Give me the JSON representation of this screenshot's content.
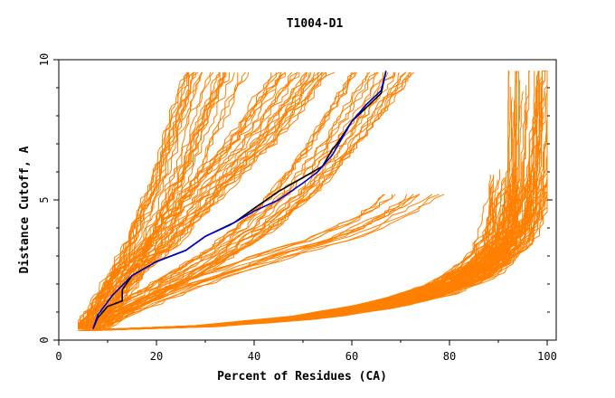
{
  "chart_data": {
    "type": "line",
    "title": "T1004-D1",
    "xlabel": "Percent of Residues (CA)",
    "ylabel": "Distance Cutoff, A",
    "xlim": [
      0,
      100
    ],
    "ylim": [
      0,
      10
    ],
    "x_ticks": [
      "0",
      "20",
      "40",
      "60",
      "80",
      "100"
    ],
    "y_ticks": [
      "0",
      "5",
      "10"
    ],
    "grid": false,
    "colors": {
      "model": "#ff8000",
      "highlight_black": "#000000",
      "highlight_blue": "#0000cc"
    },
    "highlight_series": [
      {
        "color": "#000000",
        "x": [
          7,
          8,
          10,
          13,
          13,
          15,
          20,
          26,
          30,
          36,
          40,
          45,
          49,
          54,
          56,
          57,
          60,
          63,
          66,
          67
        ],
        "y": [
          0.4,
          0.8,
          1.2,
          1.4,
          1.8,
          2.3,
          2.8,
          3.2,
          3.7,
          4.2,
          4.7,
          5.3,
          5.7,
          6.2,
          6.8,
          7.0,
          7.8,
          8.3,
          8.8,
          9.6
        ]
      },
      {
        "color": "#0000cc",
        "x": [
          7,
          8,
          11,
          15,
          20,
          26,
          30,
          35,
          40,
          45,
          50,
          53,
          56,
          60,
          63,
          66,
          67
        ],
        "y": [
          0.4,
          0.9,
          1.6,
          2.3,
          2.8,
          3.2,
          3.7,
          4.1,
          4.6,
          5.0,
          5.6,
          6.0,
          6.6,
          7.8,
          8.4,
          8.9,
          9.6
        ]
      }
    ],
    "model_groups": [
      {
        "count": 28,
        "x": [
          6,
          9,
          12,
          14,
          17,
          20,
          24,
          27,
          32
        ],
        "y": [
          0.4,
          1.0,
          1.8,
          2.5,
          3.4,
          4.5,
          6.0,
          7.5,
          9.6
        ]
      },
      {
        "count": 26,
        "x": [
          5,
          8,
          11,
          15,
          20,
          25,
          32,
          40,
          50
        ],
        "y": [
          0.4,
          1.0,
          1.8,
          2.5,
          3.3,
          4.3,
          5.7,
          7.2,
          9.6
        ]
      },
      {
        "count": 22,
        "x": [
          7,
          12,
          18,
          25,
          32,
          40,
          48,
          56,
          66
        ],
        "y": [
          0.4,
          1.0,
          1.6,
          2.3,
          3.0,
          4.0,
          5.3,
          7.0,
          9.6
        ]
      },
      {
        "count": 12,
        "x": [
          5,
          10,
          17,
          25,
          35,
          45,
          55,
          64,
          72
        ],
        "y": [
          0.4,
          0.8,
          1.3,
          1.9,
          2.5,
          3.1,
          3.6,
          4.3,
          5.2
        ]
      },
      {
        "count": 55,
        "x": [
          6,
          15,
          30,
          50,
          65,
          78,
          86,
          90,
          93
        ],
        "y": [
          0.35,
          0.4,
          0.5,
          0.8,
          1.2,
          1.8,
          2.6,
          3.5,
          5.5
        ]
      },
      {
        "count": 25,
        "x": [
          6,
          15,
          30,
          50,
          65,
          78,
          88,
          94,
          96
        ],
        "y": [
          0.35,
          0.4,
          0.5,
          0.8,
          1.2,
          1.8,
          2.6,
          4.0,
          9.6
        ]
      },
      {
        "count": 28,
        "x": [
          6,
          15,
          30,
          50,
          65,
          78,
          88,
          95,
          98,
          100
        ],
        "y": [
          0.35,
          0.4,
          0.5,
          0.8,
          1.2,
          1.8,
          2.6,
          3.8,
          5.5,
          9.6
        ]
      }
    ]
  }
}
